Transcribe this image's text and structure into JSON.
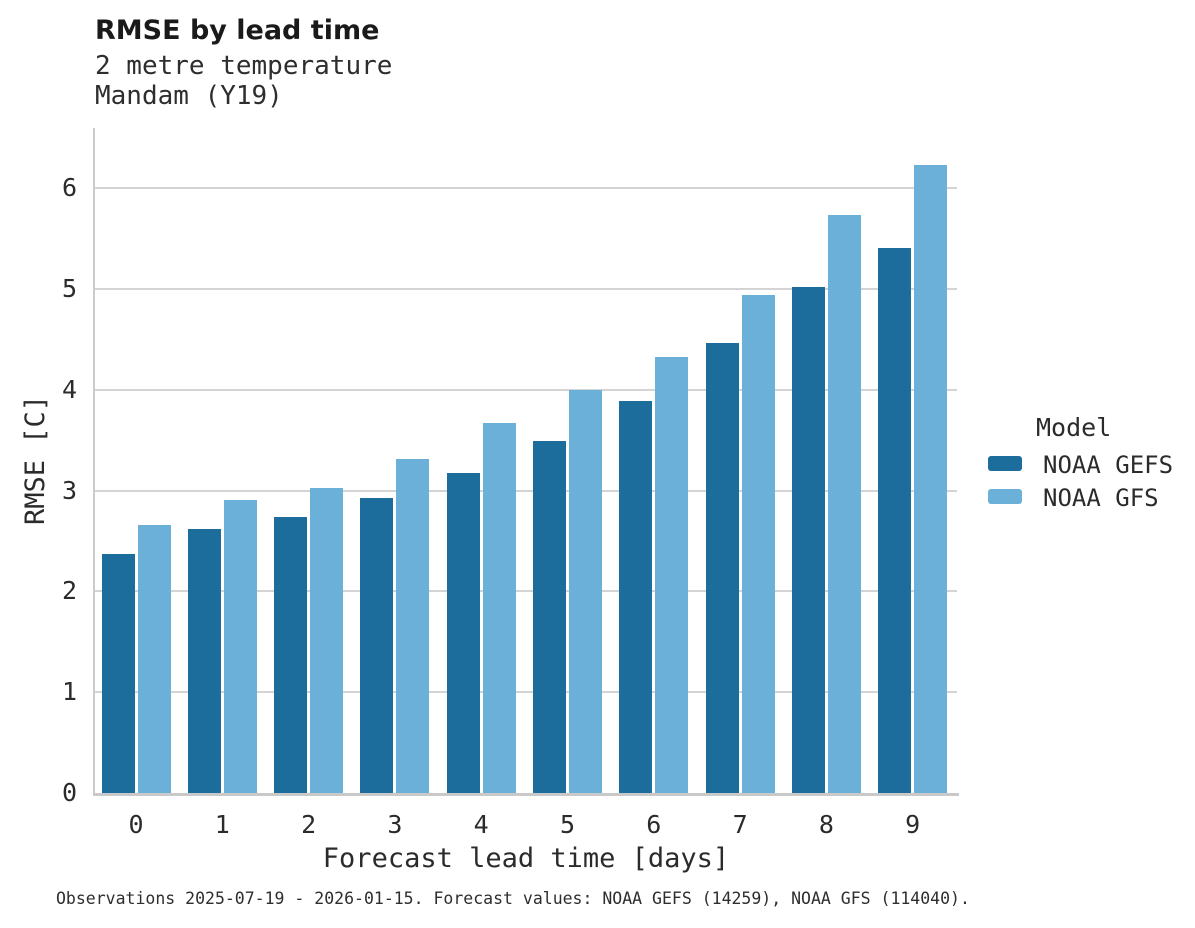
{
  "chart_data": {
    "type": "bar",
    "title": "RMSE by lead time",
    "subtitle": [
      "2 metre temperature",
      "Mandam (Y19)"
    ],
    "xlabel": "Forecast lead time [days]",
    "ylabel": "RMSE [C]",
    "categories": [
      "0",
      "1",
      "2",
      "3",
      "4",
      "5",
      "6",
      "7",
      "8",
      "9"
    ],
    "series": [
      {
        "name": "NOAA GEFS",
        "color": "#1c6d9c",
        "values": [
          2.37,
          2.62,
          2.74,
          2.93,
          3.18,
          3.49,
          3.89,
          4.47,
          5.02,
          5.41
        ]
      },
      {
        "name": "NOAA GFS",
        "color": "#6bb0d9",
        "values": [
          2.66,
          2.91,
          3.03,
          3.31,
          3.67,
          4.0,
          4.33,
          4.94,
          5.74,
          6.23
        ]
      }
    ],
    "ylim": [
      0,
      6.6
    ],
    "yticks": [
      0,
      1,
      2,
      3,
      4,
      5,
      6
    ],
    "grid": "horizontal",
    "legend_title": "Model",
    "legend_position": "right",
    "caption": "Observations 2025-07-19 - 2026-01-15. Forecast values: NOAA GEFS (14259), NOAA GFS (114040)."
  }
}
